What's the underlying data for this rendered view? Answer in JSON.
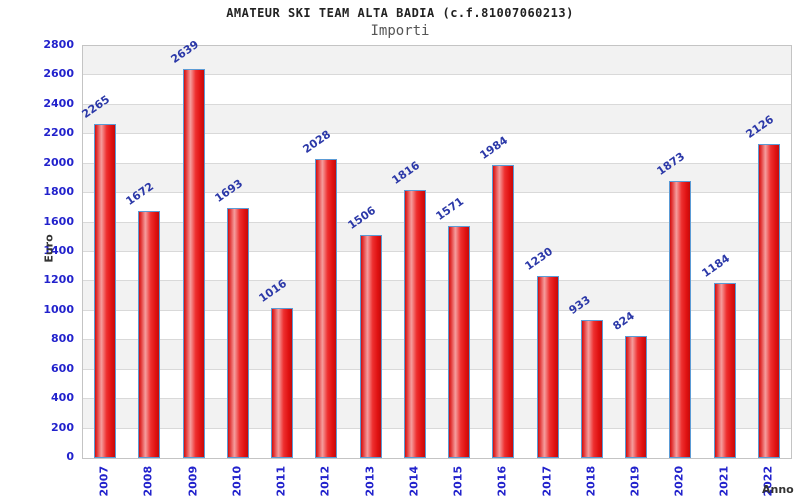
{
  "header": {
    "title": "AMATEUR SKI TEAM ALTA BADIA (c.f.81007060213)",
    "subtitle": "Importi"
  },
  "chart_data": {
    "type": "bar",
    "title": "AMATEUR SKI TEAM ALTA BADIA (c.f.81007060213)",
    "subtitle": "Importi",
    "categories": [
      "2007",
      "2008",
      "2009",
      "2010",
      "2011",
      "2012",
      "2013",
      "2014",
      "2015",
      "2016",
      "2017",
      "2018",
      "2019",
      "2020",
      "2021",
      "2022"
    ],
    "values": [
      2265,
      1672,
      2639,
      1693,
      1016,
      2028,
      1506,
      1816,
      1571,
      1984,
      1230,
      933,
      824,
      1873,
      1184,
      2126
    ],
    "xlabel": "Anno",
    "ylabel": "Euro",
    "ylim": [
      0,
      2800
    ],
    "ytick_step": 200,
    "grid": "horizontal",
    "legend": "none",
    "colors": {
      "bar_fill": "#e01212",
      "bar_highlight": "#f59e9e",
      "bar_border": "#5b9bd5",
      "tick_text": "#2222cc",
      "value_text": "#2b38a8",
      "band_gray": "#f2f2f2",
      "gridline": "#d9d9d9",
      "title_text": "#222222",
      "subtitle_text": "#555555"
    }
  }
}
